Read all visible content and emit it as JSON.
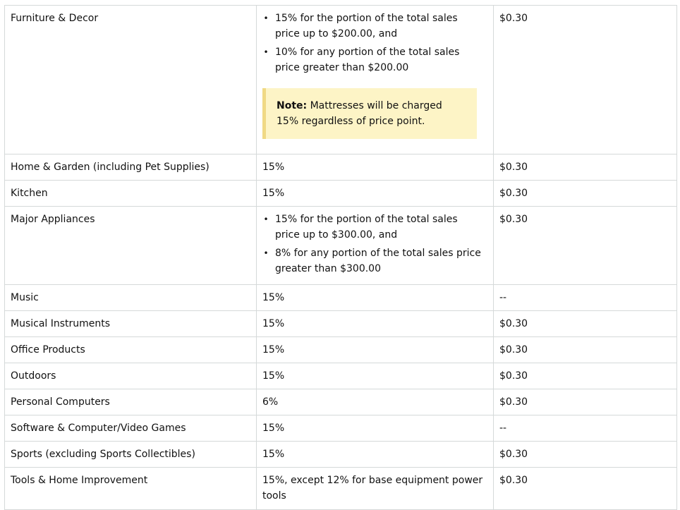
{
  "rows": [
    {
      "category": "Furniture & Decor",
      "tiers": [
        "15% for the portion of the total sales price up to $200.00, and",
        "10% for any portion of the total sales price greater than $200.00"
      ],
      "note": {
        "label": "Note:",
        "text": " Mattresses will be charged 15% regardless of price point."
      },
      "minimum": "$0.30"
    },
    {
      "category": "Home & Garden (including Pet Supplies)",
      "fee": "15%",
      "minimum": "$0.30"
    },
    {
      "category": "Kitchen",
      "fee": "15%",
      "minimum": "$0.30"
    },
    {
      "category": "Major Appliances",
      "tiers": [
        "15% for the portion of the total sales price up to $300.00, and",
        "8% for any portion of the total sales price greater than $300.00"
      ],
      "minimum": "$0.30"
    },
    {
      "category": "Music",
      "fee": "15%",
      "minimum": "--"
    },
    {
      "category": "Musical Instruments",
      "fee": "15%",
      "minimum": "$0.30"
    },
    {
      "category": "Office Products",
      "fee": "15%",
      "minimum": "$0.30"
    },
    {
      "category": "Outdoors",
      "fee": "15%",
      "minimum": "$0.30"
    },
    {
      "category": "Personal Computers",
      "fee": "6%",
      "minimum": "$0.30"
    },
    {
      "category": "Software & Computer/Video Games",
      "fee": "15%",
      "minimum": "--"
    },
    {
      "category": "Sports (excluding Sports Collectibles)",
      "fee": "15%",
      "minimum": "$0.30"
    },
    {
      "category": "Tools & Home Improvement",
      "fee": "15%, except 12% for base equipment power tools",
      "minimum": "$0.30"
    }
  ],
  "bullet_glyph": "•"
}
